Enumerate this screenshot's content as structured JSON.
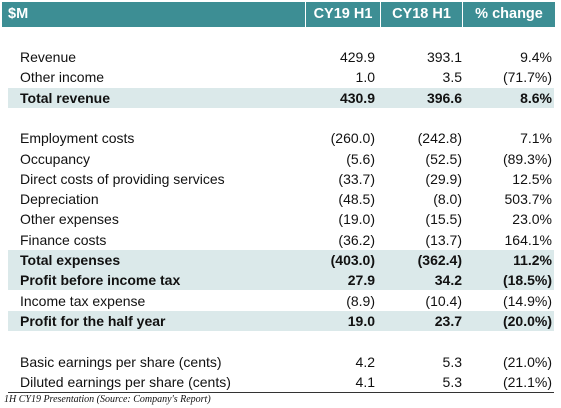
{
  "table": {
    "header": [
      "$M",
      "CY19 H1",
      "CY18 H1",
      "% change"
    ],
    "sections": [
      {
        "rows": [
          {
            "label": "Revenue",
            "values": [
              "429.9",
              "393.1",
              "9.4%"
            ]
          },
          {
            "label": "Other income",
            "values": [
              "1.0",
              "3.5",
              "(71.7%)"
            ]
          },
          {
            "label": "Total revenue",
            "values": [
              "430.9",
              "396.6",
              "8.6%"
            ],
            "bold": true
          }
        ]
      },
      {
        "rows": [
          {
            "label": "Employment costs",
            "values": [
              "(260.0)",
              "(242.8)",
              "7.1%"
            ]
          },
          {
            "label": "Occupancy",
            "values": [
              "(5.6)",
              "(52.5)",
              "(89.3%)"
            ]
          },
          {
            "label": "Direct costs of providing services",
            "values": [
              "(33.7)",
              "(29.9)",
              "12.5%"
            ]
          },
          {
            "label": "Depreciation",
            "values": [
              "(48.5)",
              "(8.0)",
              "503.7%"
            ]
          },
          {
            "label": "Other expenses",
            "values": [
              "(19.0)",
              "(15.5)",
              "23.0%"
            ]
          },
          {
            "label": "Finance costs",
            "values": [
              "(36.2)",
              "(13.7)",
              "164.1%"
            ]
          },
          {
            "label": "Total expenses",
            "values": [
              "(403.0)",
              "(362.4)",
              "11.2%"
            ],
            "bold": true
          },
          {
            "label": "Profit before income tax",
            "values": [
              "27.9",
              "34.2",
              "(18.5%)"
            ],
            "bold": true
          },
          {
            "label": "Income tax expense",
            "values": [
              "(8.9)",
              "(10.4)",
              "(14.9%)"
            ]
          },
          {
            "label": "Profit for the half year",
            "values": [
              "19.0",
              "23.7",
              "(20.0%)"
            ],
            "bold": true
          }
        ]
      },
      {
        "rows": [
          {
            "label": "Basic earnings per share (cents)",
            "values": [
              "4.2",
              "5.3",
              "(21.0%)"
            ]
          },
          {
            "label": "Diluted earnings per share (cents)",
            "values": [
              "4.1",
              "5.3",
              "(21.1%)"
            ]
          }
        ]
      }
    ],
    "caption": "1H CY19 Presentation (Source: Company's Report)"
  }
}
